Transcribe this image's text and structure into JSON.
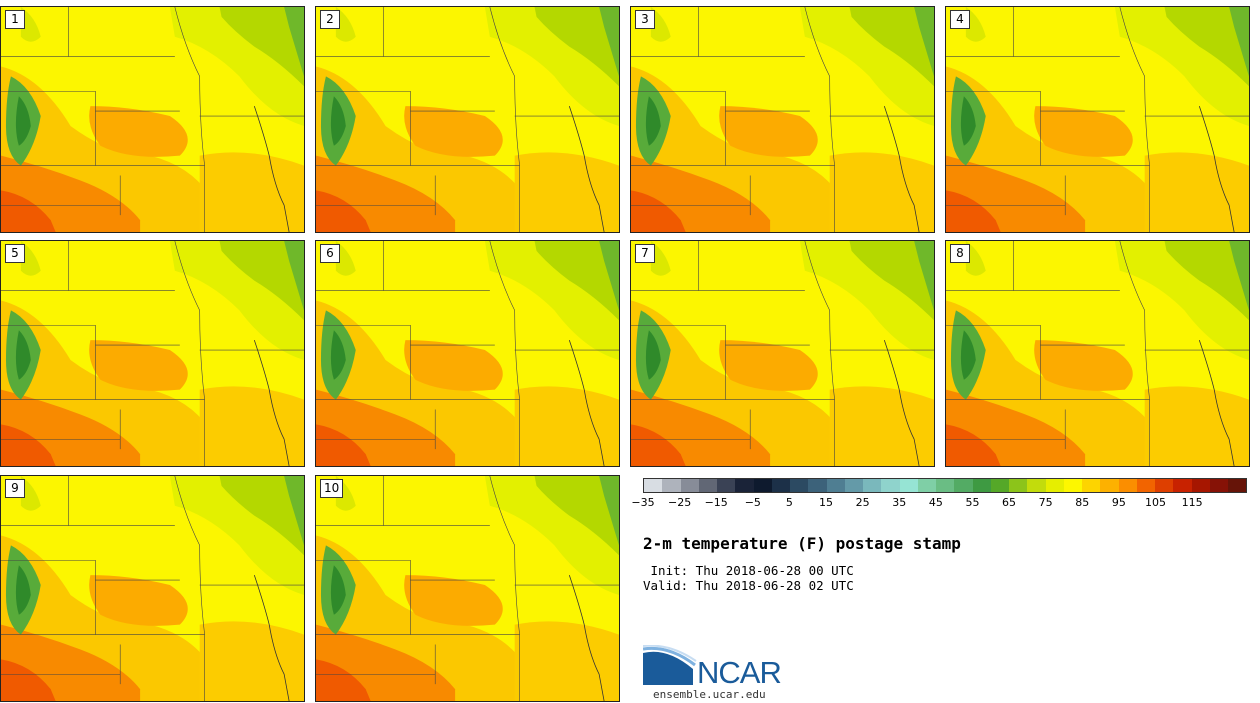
{
  "title": "2-m temperature (F) postage stamp",
  "init_line": " Init: Thu 2018-06-28 00 UTC",
  "valid_line": "Valid: Thu 2018-06-28 02 UTC",
  "logo_text": "NCAR",
  "url": "ensemble.ucar.edu",
  "panels": [
    {
      "label": "1"
    },
    {
      "label": "2"
    },
    {
      "label": "3"
    },
    {
      "label": "4"
    },
    {
      "label": "5"
    },
    {
      "label": "6"
    },
    {
      "label": "7"
    },
    {
      "label": "8"
    },
    {
      "label": "9"
    },
    {
      "label": "10"
    }
  ],
  "colorbar": {
    "ticks": [
      "-35",
      "-25",
      "-15",
      "-5",
      "5",
      "15",
      "25",
      "35",
      "45",
      "55",
      "65",
      "75",
      "85",
      "95",
      "105",
      "115"
    ],
    "colors": [
      "#d8dde3",
      "#aeb3bc",
      "#878c98",
      "#616775",
      "#3a4255",
      "#1a2338",
      "#0e1a2e",
      "#1c3048",
      "#2c4a62",
      "#3c627a",
      "#4f7e92",
      "#649aa8",
      "#7ab8bc",
      "#8fd3cc",
      "#96e4d4",
      "#7fcfa6",
      "#6abd84",
      "#53ab64",
      "#3e9a42",
      "#55a828",
      "#8cc41a",
      "#c2dc0c",
      "#e6ee00",
      "#fdf700",
      "#fdd400",
      "#fdb100",
      "#fb8e00",
      "#f26400",
      "#de3f00",
      "#c82200",
      "#a61600",
      "#861206",
      "#661408"
    ]
  }
}
